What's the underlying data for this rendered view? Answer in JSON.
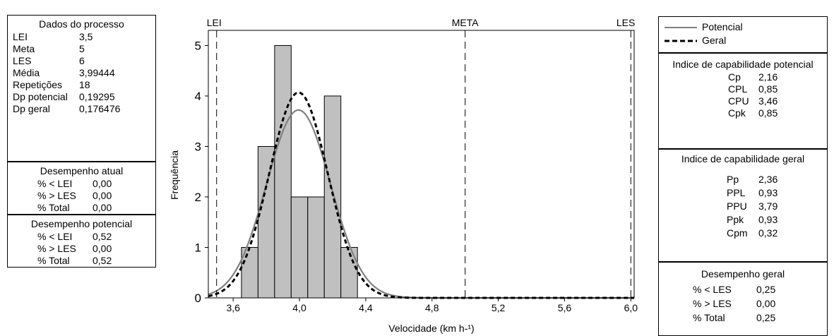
{
  "process_box": {
    "title": "Dados do processo",
    "rows": [
      {
        "label": "LEI",
        "value": "3,5"
      },
      {
        "label": "Meta",
        "value": "5"
      },
      {
        "label": "LES",
        "value": "6"
      },
      {
        "label": "Média",
        "value": "3,99444"
      },
      {
        "label": "Repetições",
        "value": "18"
      },
      {
        "label": "Dp potencial",
        "value": "0,19295"
      },
      {
        "label": "Dp geral",
        "value": "0,176476"
      }
    ]
  },
  "current_perf": {
    "title": "Desempenho atual",
    "rows": [
      {
        "label": "% < LEI",
        "value": "0,00"
      },
      {
        "label": "% > LES",
        "value": "0,00"
      },
      {
        "label": "% Total",
        "value": "0,00"
      }
    ]
  },
  "potential_perf": {
    "title": "Desempenho potencial",
    "rows": [
      {
        "label": "% < LEI",
        "value": "0,52"
      },
      {
        "label": "% > LES",
        "value": "0,00"
      },
      {
        "label": "% Total",
        "value": "0,52"
      }
    ]
  },
  "legend": {
    "items": [
      {
        "label": "Potencial",
        "style": "solid",
        "color": "#808080"
      },
      {
        "label": "Geral",
        "style": "dashed",
        "color": "#000000"
      }
    ]
  },
  "potential_cap": {
    "title": "Indice de capabilidade potencial",
    "rows": [
      {
        "label": "Cp",
        "value": "2,16"
      },
      {
        "label": "CPL",
        "value": "0,85"
      },
      {
        "label": "CPU",
        "value": "3,46"
      },
      {
        "label": "Cpk",
        "value": "0,85"
      }
    ]
  },
  "overall_cap": {
    "title": "Indice de capabilidade geral",
    "rows": [
      {
        "label": "Pp",
        "value": "2,36"
      },
      {
        "label": "PPL",
        "value": "0,93"
      },
      {
        "label": "PPU",
        "value": "3,79"
      },
      {
        "label": "Ppk",
        "value": "0,93"
      },
      {
        "label": "Cpm",
        "value": "0,32"
      }
    ]
  },
  "overall_perf": {
    "title": "Desempenho geral",
    "rows": [
      {
        "label": "% < LES",
        "value": "0,25"
      },
      {
        "label": "% > LES",
        "value": "0,00"
      },
      {
        "label": "% Total",
        "value": "0,25"
      }
    ]
  },
  "chart_data": {
    "type": "bar",
    "xlabel": "Velocidade (km h-¹)",
    "ylabel": "Frequência",
    "xlim": [
      3.45,
      6.02
    ],
    "ylim": [
      0,
      5.3
    ],
    "x_ticks": [
      3.6,
      4.0,
      4.4,
      4.8,
      5.2,
      5.6,
      6.0
    ],
    "x_tick_labels": [
      "3,6",
      "4,0",
      "4,4",
      "4,8",
      "5,2",
      "5,6",
      "6,0"
    ],
    "y_ticks": [
      0,
      1,
      2,
      3,
      4,
      5
    ],
    "y_tick_labels": [
      "0",
      "1",
      "2",
      "3",
      "4",
      "5"
    ],
    "bin_width": 0.1,
    "bins": [
      {
        "center": 3.7,
        "count": 1
      },
      {
        "center": 3.8,
        "count": 3
      },
      {
        "center": 3.9,
        "count": 5
      },
      {
        "center": 4.0,
        "count": 2
      },
      {
        "center": 4.1,
        "count": 2
      },
      {
        "center": 4.2,
        "count": 4
      },
      {
        "center": 4.3,
        "count": 1
      }
    ],
    "spec_lines": [
      {
        "label": "LEI",
        "x": 3.5
      },
      {
        "label": "META",
        "x": 5.0
      },
      {
        "label": "LES",
        "x": 6.0
      }
    ],
    "curves": [
      {
        "name": "Potencial",
        "mean": 3.99444,
        "sd": 0.19295,
        "n": 18,
        "color": "#808080",
        "dash": "none"
      },
      {
        "name": "Geral",
        "mean": 3.99444,
        "sd": 0.176476,
        "n": 18,
        "color": "#000000",
        "dash": "6,4"
      }
    ],
    "bar_color": "#c0c0c0"
  }
}
